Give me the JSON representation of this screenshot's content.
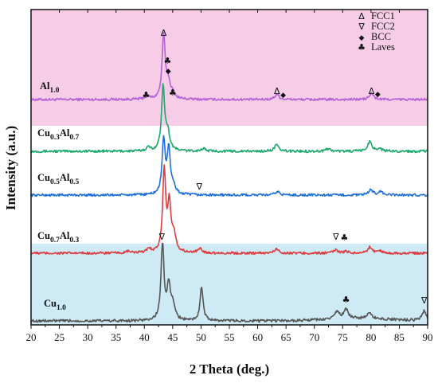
{
  "chart_data": {
    "type": "line",
    "title": "",
    "xlabel": "2 Theta (deg.)",
    "ylabel": "Intensity (a.u.)",
    "xlim": [
      20,
      90
    ],
    "x_ticks": [
      20,
      25,
      30,
      35,
      40,
      45,
      50,
      55,
      60,
      65,
      70,
      75,
      80,
      85,
      90
    ],
    "y_ticks_visible": false,
    "background_bands": [
      {
        "color": "#f6cce6",
        "from": "top",
        "to": "Cu0.3Al0.7"
      },
      {
        "color": "#ffffff",
        "from": "Cu0.3Al0.7",
        "to": "Cu0.7Al0.3"
      },
      {
        "color": "#cdeaf5",
        "from": "Cu0.7Al0.3",
        "to": "bottom"
      }
    ],
    "series": [
      {
        "name": "Al1.0",
        "base": "Al",
        "sub1": "1.0",
        "color": "#b561d6",
        "peaks": [
          [
            40.5,
            0.04
          ],
          [
            43.4,
            0.72
          ],
          [
            44.2,
            0.18
          ],
          [
            45.0,
            0.05
          ],
          [
            63.4,
            0.06
          ],
          [
            80.1,
            0.07
          ]
        ]
      },
      {
        "name": "Cu0.3Al0.7",
        "base": "Cu",
        "sub1": "0.3",
        "base2": "Al",
        "sub2": "0.7",
        "color": "#1aa86b",
        "peaks": [
          [
            40.7,
            0.04
          ],
          [
            43.3,
            0.74
          ],
          [
            44.1,
            0.2
          ],
          [
            50.4,
            0.03
          ],
          [
            63.3,
            0.07
          ],
          [
            72.4,
            0.03
          ],
          [
            79.8,
            0.11
          ],
          [
            81.5,
            0.03
          ]
        ]
      },
      {
        "name": "Cu0.5Al0.5",
        "base": "Cu",
        "sub1": "0.5",
        "base2": "Al",
        "sub2": "0.5",
        "color": "#1f6fd6",
        "peaks": [
          [
            43.4,
            0.63
          ],
          [
            44.3,
            0.5
          ],
          [
            45.1,
            0.09
          ],
          [
            63.5,
            0.04
          ],
          [
            80.0,
            0.06
          ],
          [
            81.7,
            0.04
          ]
        ]
      },
      {
        "name": "Cu0.7Al0.3",
        "base": "Cu",
        "sub1": "0.7",
        "base2": "Al",
        "sub2": "0.3",
        "color": "#e0393c",
        "peaks": [
          [
            37.2,
            0.02
          ],
          [
            40.8,
            0.05
          ],
          [
            43.5,
            0.95
          ],
          [
            44.4,
            0.55
          ],
          [
            45.2,
            0.2
          ],
          [
            49.8,
            0.05
          ],
          [
            63.3,
            0.05
          ],
          [
            73.8,
            0.04
          ],
          [
            75.7,
            0.02
          ],
          [
            79.8,
            0.07
          ],
          [
            81.5,
            0.03
          ]
        ]
      },
      {
        "name": "Cu1.0",
        "base": "Cu",
        "sub1": "1.0",
        "color": "#565656",
        "peaks": [
          [
            43.2,
            0.8
          ],
          [
            44.3,
            0.35
          ],
          [
            45.0,
            0.16
          ],
          [
            50.1,
            0.35
          ],
          [
            74.0,
            0.08
          ],
          [
            75.6,
            0.1
          ],
          [
            79.8,
            0.06
          ],
          [
            89.4,
            0.1
          ]
        ]
      }
    ],
    "phase_markers": [
      {
        "phase": "FCC1",
        "symbol": "Δ",
        "positions": [
          {
            "x": 43.4,
            "series": "Al1.0"
          },
          {
            "x": 63.4,
            "series": "Al1.0"
          },
          {
            "x": 80.1,
            "series": "Al1.0"
          }
        ]
      },
      {
        "phase": "FCC2",
        "symbol": "∇",
        "positions": [
          {
            "x": 49.7,
            "series": "Cu0.5Al0.5"
          },
          {
            "x": 43.1,
            "series": "Cu0.7Al0.3"
          },
          {
            "x": 73.8,
            "series": "Cu0.7Al0.3"
          },
          {
            "x": 89.4,
            "series": "Cu1.0"
          }
        ]
      },
      {
        "phase": "BCC",
        "symbol": "◆",
        "positions": [
          {
            "x": 44.2,
            "series": "Al1.0"
          },
          {
            "x": 64.5,
            "series": "Al1.0"
          },
          {
            "x": 81.2,
            "series": "Al1.0"
          }
        ]
      },
      {
        "phase": "Laves",
        "symbol": "♣",
        "positions": [
          {
            "x": 44.1,
            "series": "Al1.0"
          },
          {
            "x": 40.3,
            "series": "Al1.0"
          },
          {
            "x": 45.0,
            "series": "Al1.0"
          },
          {
            "x": 75.3,
            "series": "Cu0.7Al0.3"
          },
          {
            "x": 75.6,
            "series": "Cu1.0"
          }
        ]
      }
    ],
    "legend": {
      "placement": "top-right",
      "entries": [
        "FCC1",
        "FCC2",
        "BCC",
        "Laves"
      ]
    }
  }
}
